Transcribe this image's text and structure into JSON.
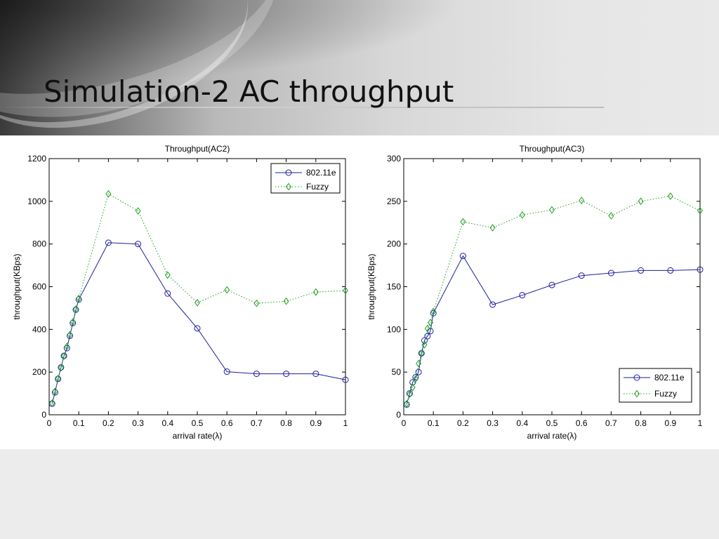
{
  "slide": {
    "title": "Simulation-2 AC throughput"
  },
  "chart_data": [
    {
      "type": "line",
      "title": "Throughput(AC2)",
      "xlabel": "arrival rate(λ)",
      "ylabel": "throughput(KBps)",
      "xlim": [
        0,
        1
      ],
      "ylim": [
        0,
        1200
      ],
      "xticks": [
        "0",
        "0.1",
        "0.2",
        "0.3",
        "0.4",
        "0.5",
        "0.6",
        "0.7",
        "0.8",
        "0.9",
        "1"
      ],
      "yticks": [
        "0",
        "200",
        "400",
        "600",
        "800",
        "1000",
        "1200"
      ],
      "legend_position": "top-right",
      "series": [
        {
          "name": "802.11e",
          "color": "#1f1f9e",
          "marker": "circle",
          "line": "solid",
          "x": [
            0.01,
            0.02,
            0.03,
            0.04,
            0.05,
            0.06,
            0.07,
            0.08,
            0.09,
            0.1,
            0.2,
            0.3,
            0.4,
            0.5,
            0.6,
            0.7,
            0.8,
            0.9,
            1.0
          ],
          "y": [
            52,
            105,
            168,
            222,
            276,
            312,
            370,
            430,
            492,
            540,
            806,
            800,
            568,
            405,
            202,
            192,
            192,
            192,
            164
          ]
        },
        {
          "name": "Fuzzy",
          "color": "#1f9e1f",
          "marker": "diamond",
          "line": "dotted",
          "x": [
            0.01,
            0.02,
            0.03,
            0.04,
            0.05,
            0.06,
            0.07,
            0.08,
            0.09,
            0.1,
            0.2,
            0.3,
            0.4,
            0.5,
            0.6,
            0.7,
            0.8,
            0.9,
            1.0
          ],
          "y": [
            55,
            110,
            170,
            220,
            275,
            320,
            375,
            435,
            495,
            545,
            1035,
            955,
            655,
            525,
            585,
            522,
            532,
            575,
            582
          ]
        }
      ]
    },
    {
      "type": "line",
      "title": "Throughput(AC3)",
      "xlabel": "arrival rate(λ)",
      "ylabel": "throughput(KBps)",
      "xlim": [
        0,
        1
      ],
      "ylim": [
        0,
        300
      ],
      "xticks": [
        "0",
        "0.1",
        "0.2",
        "0.3",
        "0.4",
        "0.5",
        "0.6",
        "0.7",
        "0.8",
        "0.9",
        "1"
      ],
      "yticks": [
        "0",
        "50",
        "100",
        "150",
        "200",
        "250",
        "300"
      ],
      "legend_position": "bottom-right",
      "series": [
        {
          "name": "802.11e",
          "color": "#1f1f9e",
          "marker": "circle",
          "line": "solid",
          "x": [
            0.01,
            0.02,
            0.03,
            0.04,
            0.05,
            0.06,
            0.07,
            0.08,
            0.09,
            0.1,
            0.2,
            0.3,
            0.4,
            0.5,
            0.6,
            0.7,
            0.8,
            0.9,
            1.0
          ],
          "y": [
            12,
            25,
            38,
            44,
            50,
            72,
            87,
            92,
            98,
            119,
            186,
            129,
            140,
            152,
            163,
            166,
            169,
            169,
            170
          ]
        },
        {
          "name": "Fuzzy",
          "color": "#1f9e1f",
          "marker": "diamond",
          "line": "dotted",
          "x": [
            0.01,
            0.02,
            0.03,
            0.04,
            0.05,
            0.06,
            0.07,
            0.08,
            0.09,
            0.1,
            0.2,
            0.3,
            0.4,
            0.5,
            0.6,
            0.7,
            0.8,
            0.9,
            1.0
          ],
          "y": [
            13,
            24,
            32,
            42,
            60,
            72,
            82,
            101,
            108,
            121,
            226,
            219,
            234,
            240,
            251,
            233,
            250,
            256,
            239
          ]
        }
      ]
    }
  ]
}
